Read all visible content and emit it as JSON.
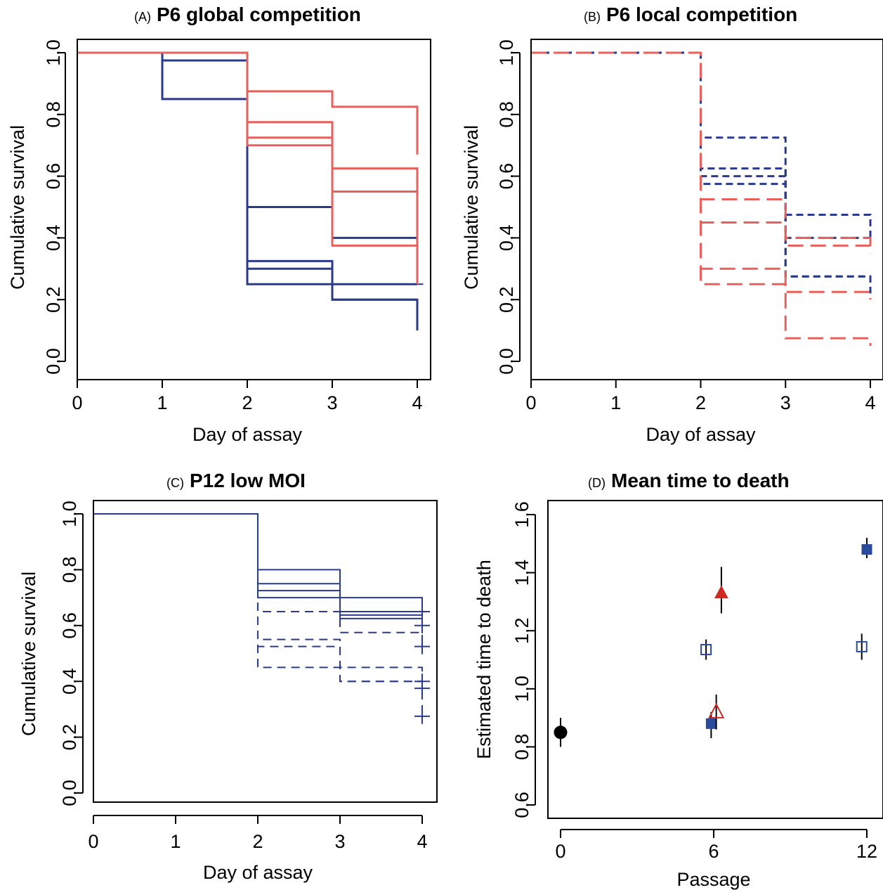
{
  "colors": {
    "blue": "#2a3a8c",
    "red": "#e8605c",
    "black": "#000000",
    "dark_red": "#cc2a22",
    "square_blue": "#2a4a9c"
  },
  "chart_data": [
    {
      "id": "A",
      "type": "line",
      "subtype": "step-survival",
      "letter": "(A)",
      "title": "P6 global competition",
      "xlabel": "Day of assay",
      "ylabel": "Cumulative survival",
      "xlim": [
        0,
        4.1
      ],
      "ylim": [
        0,
        1.0
      ],
      "xticks": [
        "0",
        "1",
        "2",
        "3",
        "4"
      ],
      "yticks": [
        "0.0",
        "0.2",
        "0.4",
        "0.6",
        "0.8",
        "1.0"
      ],
      "grid": false,
      "series": [
        {
          "color": "blue",
          "dash": "solid",
          "points": [
            [
              0,
              1
            ],
            [
              1,
              0.85
            ],
            [
              2,
              0.25
            ],
            [
              3,
              0.2
            ],
            [
              4,
              0.1
            ]
          ]
        },
        {
          "color": "blue",
          "dash": "solid",
          "points": [
            [
              0,
              1
            ],
            [
              1,
              0.975
            ],
            [
              2,
              0.3
            ],
            [
              3,
              0.25
            ],
            [
              4,
              0.25
            ]
          ],
          "censor_end": [
            4.07,
            0.25
          ]
        },
        {
          "color": "blue",
          "dash": "solid",
          "points": [
            [
              0,
              1
            ],
            [
              2,
              0.325
            ],
            [
              3,
              0.2
            ],
            [
              4,
              0.2
            ]
          ]
        },
        {
          "color": "blue",
          "dash": "solid",
          "points": [
            [
              0,
              1
            ],
            [
              2,
              0.5
            ],
            [
              3,
              0.4
            ],
            [
              4,
              0.38
            ]
          ]
        },
        {
          "color": "red",
          "dash": "solid",
          "points": [
            [
              0,
              1
            ],
            [
              2,
              0.875
            ],
            [
              3,
              0.825
            ],
            [
              4,
              0.67
            ]
          ]
        },
        {
          "color": "red",
          "dash": "solid",
          "points": [
            [
              0,
              1
            ],
            [
              2,
              0.775
            ],
            [
              3,
              0.625
            ],
            [
              4,
              0.25
            ]
          ]
        },
        {
          "color": "red",
          "dash": "solid",
          "points": [
            [
              0,
              1
            ],
            [
              2,
              0.725
            ],
            [
              3,
              0.55
            ],
            [
              4,
              0.55
            ]
          ]
        },
        {
          "color": "red",
          "dash": "solid",
          "points": [
            [
              0,
              1
            ],
            [
              2,
              0.7
            ],
            [
              3,
              0.375
            ],
            [
              4,
              0.375
            ]
          ]
        }
      ]
    },
    {
      "id": "B",
      "type": "line",
      "subtype": "step-survival",
      "letter": "(B)",
      "title": "P6 local competition",
      "xlabel": "Day of assay",
      "ylabel": "Cumulative survival",
      "xlim": [
        0,
        4.1
      ],
      "ylim": [
        0,
        1.0
      ],
      "xticks": [
        "0",
        "1",
        "2",
        "3",
        "4"
      ],
      "yticks": [
        "0.0",
        "0.2",
        "0.4",
        "0.6",
        "0.8",
        "1.0"
      ],
      "grid": false,
      "series": [
        {
          "color": "blue",
          "dash": "short",
          "points": [
            [
              0,
              1
            ],
            [
              2,
              0.725
            ],
            [
              3,
              0.475
            ],
            [
              4,
              0.4
            ]
          ]
        },
        {
          "color": "blue",
          "dash": "short",
          "points": [
            [
              0,
              1
            ],
            [
              2,
              0.625
            ],
            [
              3,
              0.4
            ],
            [
              4,
              0.38
            ]
          ]
        },
        {
          "color": "blue",
          "dash": "short",
          "points": [
            [
              0,
              1
            ],
            [
              2,
              0.6
            ],
            [
              3,
              0.275
            ],
            [
              4,
              0.22
            ]
          ]
        },
        {
          "color": "blue",
          "dash": "short",
          "points": [
            [
              0,
              1
            ],
            [
              2,
              0.575
            ],
            [
              3,
              0.275
            ],
            [
              4,
              0.275
            ]
          ]
        },
        {
          "color": "red",
          "dash": "long",
          "points": [
            [
              0,
              1
            ],
            [
              2,
              0.525
            ],
            [
              3,
              0.4
            ],
            [
              4,
              0.35
            ]
          ]
        },
        {
          "color": "red",
          "dash": "long",
          "points": [
            [
              0,
              1
            ],
            [
              2,
              0.45
            ],
            [
              3,
              0.375
            ],
            [
              4,
              0.375
            ]
          ]
        },
        {
          "color": "red",
          "dash": "long",
          "points": [
            [
              0,
              1
            ],
            [
              2,
              0.3
            ],
            [
              3,
              0.225
            ],
            [
              4,
              0.2
            ]
          ]
        },
        {
          "color": "red",
          "dash": "long",
          "points": [
            [
              0,
              1
            ],
            [
              2,
              0.25
            ],
            [
              3,
              0.075
            ],
            [
              4,
              0.05
            ]
          ]
        }
      ]
    },
    {
      "id": "C",
      "type": "line",
      "subtype": "step-survival",
      "letter": "(C)",
      "title": "P12 low MOI",
      "xlabel": "Day of assay",
      "ylabel": "Cumulative survival",
      "xlim": [
        0,
        4.1
      ],
      "ylim": [
        0,
        1.0
      ],
      "xticks": [
        "0",
        "1",
        "2",
        "3",
        "4"
      ],
      "yticks": [
        "0.0",
        "0.2",
        "0.4",
        "0.6",
        "0.8",
        "1.0"
      ],
      "grid": false,
      "series": [
        {
          "color": "blue",
          "dash": "thin-solid",
          "points": [
            [
              0,
              1
            ],
            [
              2,
              0.8
            ],
            [
              3,
              0.7
            ],
            [
              4,
              0.6
            ]
          ],
          "censor_end": [
            4,
            0.6
          ]
        },
        {
          "color": "blue",
          "dash": "thin-solid",
          "points": [
            [
              0,
              1
            ],
            [
              2,
              0.75
            ],
            [
              3,
              0.65
            ],
            [
              4,
              0.65
            ]
          ],
          "censor_end": [
            4,
            0.65
          ]
        },
        {
          "color": "blue",
          "dash": "thin-solid",
          "points": [
            [
              0,
              1
            ],
            [
              2,
              0.725
            ],
            [
              3,
              0.6375
            ],
            [
              4,
              0.6375
            ]
          ]
        },
        {
          "color": "blue",
          "dash": "thin-solid",
          "points": [
            [
              0,
              1
            ],
            [
              2,
              0.7
            ],
            [
              3,
              0.625
            ],
            [
              4,
              0.625
            ]
          ]
        },
        {
          "color": "blue",
          "dash": "thin-dashed",
          "points": [
            [
              0,
              1
            ],
            [
              2,
              0.65
            ],
            [
              3,
              0.575
            ],
            [
              4,
              0.525
            ]
          ],
          "censor_end": [
            4,
            0.525
          ]
        },
        {
          "color": "blue",
          "dash": "thin-dashed",
          "points": [
            [
              0,
              1
            ],
            [
              2,
              0.55
            ],
            [
              3,
              0.45
            ],
            [
              4,
              0.4
            ]
          ],
          "censor_end": [
            4,
            0.4
          ]
        },
        {
          "color": "blue",
          "dash": "thin-dashed",
          "points": [
            [
              0,
              1
            ],
            [
              2,
              0.525
            ],
            [
              3,
              0.4
            ],
            [
              4,
              0.375
            ]
          ],
          "censor_end": [
            4,
            0.375
          ]
        },
        {
          "color": "blue",
          "dash": "thin-dashed",
          "points": [
            [
              0,
              1
            ],
            [
              2,
              0.45
            ],
            [
              3,
              0.4
            ],
            [
              4,
              0.275
            ]
          ],
          "censor_end": [
            4,
            0.275
          ]
        }
      ]
    },
    {
      "id": "D",
      "type": "scatter",
      "letter": "(D)",
      "title": "Mean time to death",
      "xlabel": "Passage",
      "ylabel": "Estimated time to death",
      "xlim": [
        -0.5,
        12.5
      ],
      "ylim": [
        0.6,
        1.6
      ],
      "xticks": [
        "0",
        "6",
        "12"
      ],
      "xtick_values": [
        0,
        6,
        12
      ],
      "yticks": [
        "0.6",
        "0.8",
        "1.0",
        "1.2",
        "1.4",
        "1.6"
      ],
      "grid": false,
      "points": [
        {
          "x": 0,
          "y": 0.85,
          "err": [
            0.8,
            0.9
          ],
          "marker": "circle-filled",
          "color": "black"
        },
        {
          "x": 5.9,
          "y": 0.88,
          "err": [
            0.83,
            0.92
          ],
          "marker": "square-filled",
          "color": "square_blue"
        },
        {
          "x": 5.7,
          "y": 1.135,
          "err": [
            1.1,
            1.17
          ],
          "marker": "square-open",
          "color": "square_blue"
        },
        {
          "x": 6.3,
          "y": 1.33,
          "err": [
            1.26,
            1.42
          ],
          "marker": "triangle-filled",
          "color": "dark_red"
        },
        {
          "x": 6.1,
          "y": 0.92,
          "err": [
            0.86,
            0.98
          ],
          "marker": "triangle-open",
          "color": "dark_red"
        },
        {
          "x": 12.0,
          "y": 1.48,
          "err": [
            1.45,
            1.52
          ],
          "marker": "square-filled",
          "color": "square_blue"
        },
        {
          "x": 11.8,
          "y": 1.145,
          "err": [
            1.1,
            1.19
          ],
          "marker": "square-open",
          "color": "square_blue"
        }
      ]
    }
  ]
}
